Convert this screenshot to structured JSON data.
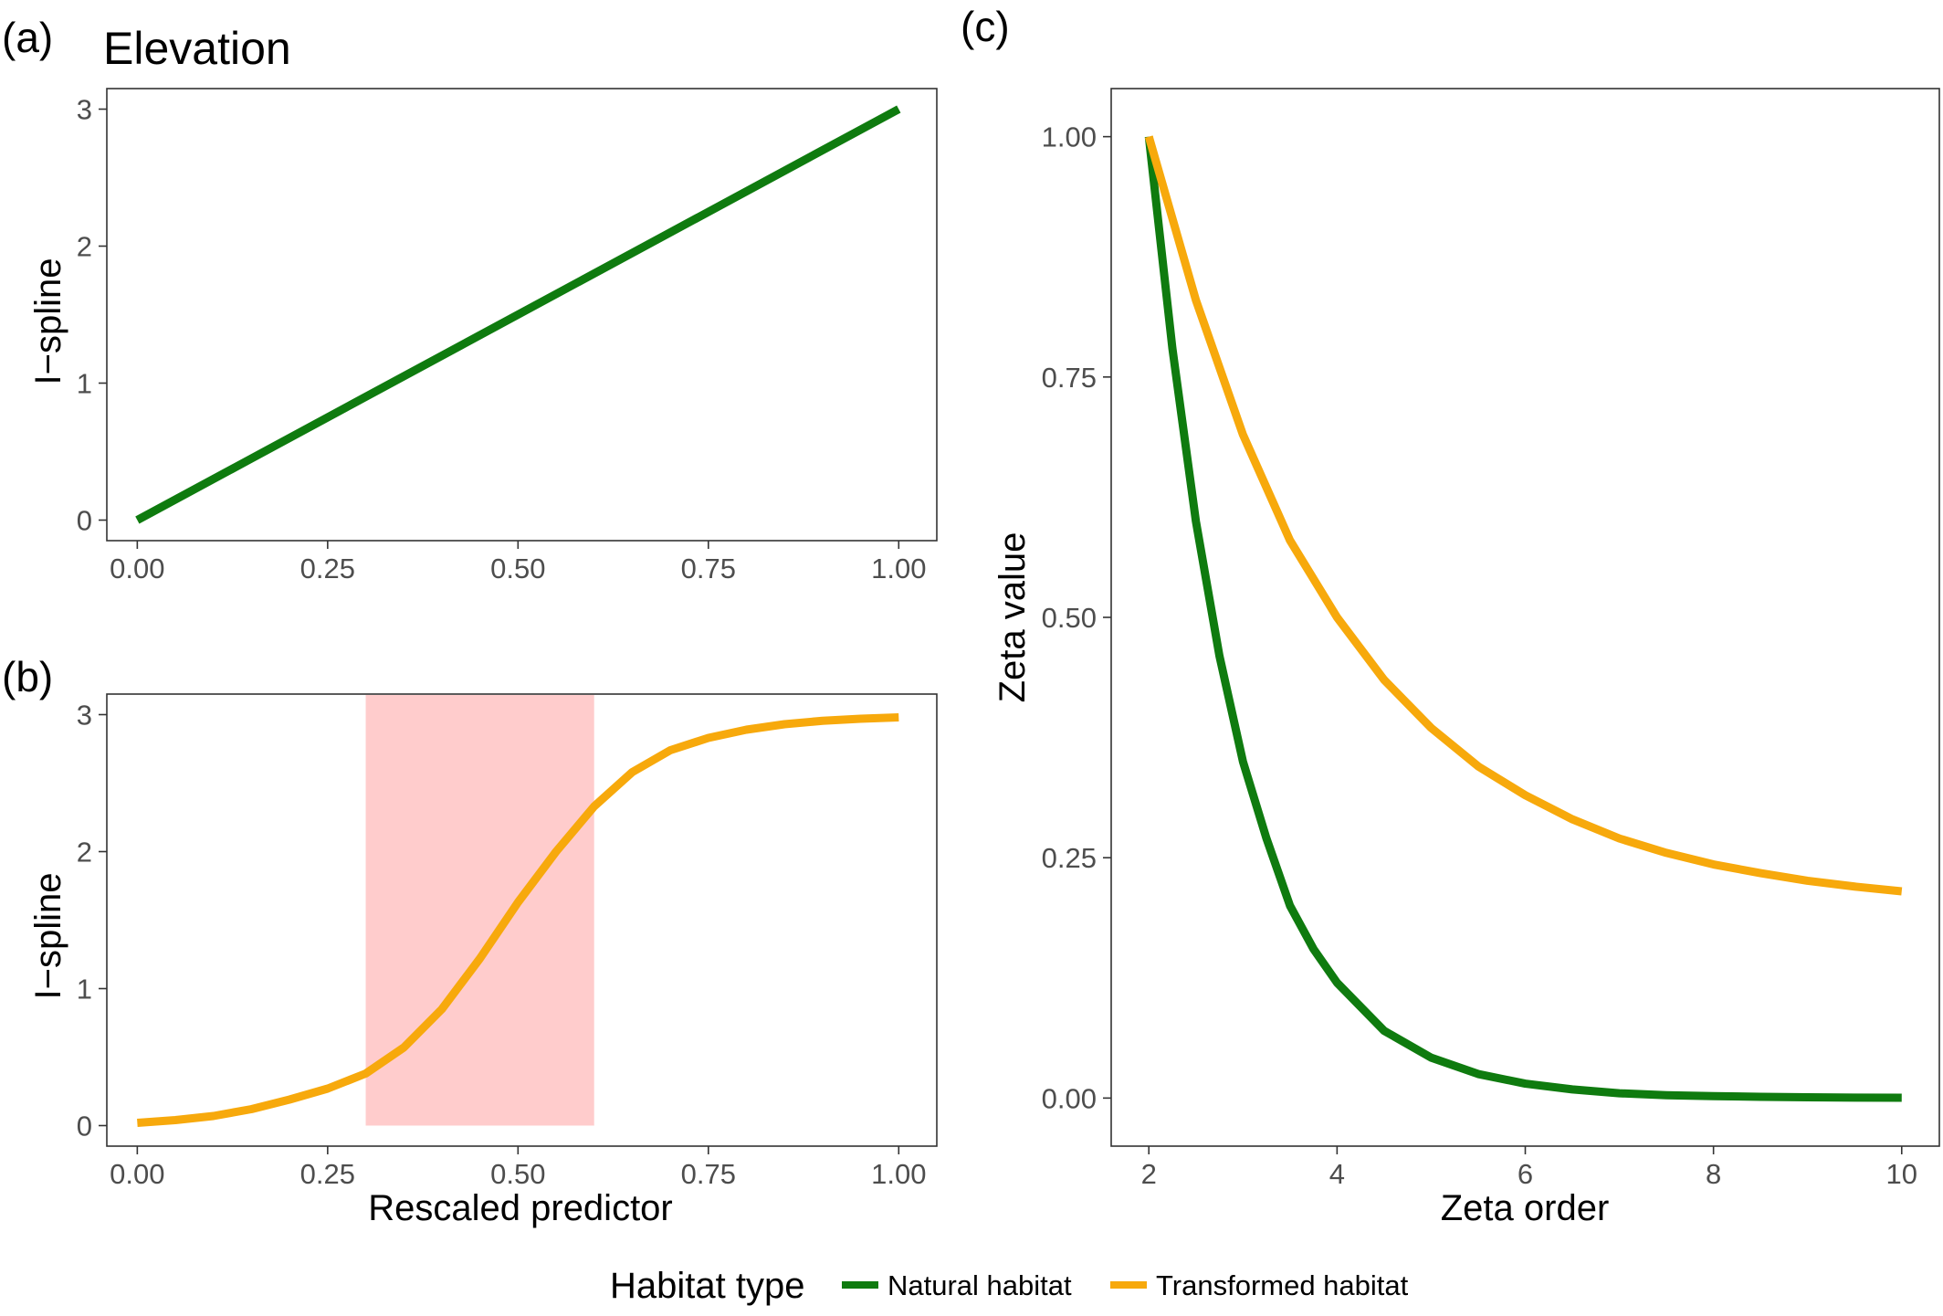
{
  "legend": {
    "title": "Habitat type",
    "items": [
      {
        "label": "Natural habitat",
        "color": "#0f7b0f"
      },
      {
        "label": "Transformed habitat",
        "color": "#f7a90c"
      }
    ]
  },
  "chart_data": [
    {
      "panel": "(a)",
      "type": "line",
      "title": "Elevation",
      "xlabel": "",
      "ylabel": "I−spline",
      "xlim": [
        -0.04,
        1.05
      ],
      "ylim": [
        -0.15,
        3.15
      ],
      "xticks": [
        0,
        0.25,
        0.5,
        0.75,
        1
      ],
      "xtick_labels": [
        "0.00",
        "0.25",
        "0.50",
        "0.75",
        "1.00"
      ],
      "yticks": [
        0,
        1,
        2,
        3
      ],
      "ytick_labels": [
        "0",
        "1",
        "2",
        "3"
      ],
      "grid": false,
      "series": [
        {
          "color": "#0f7b0f",
          "x": [
            0,
            1
          ],
          "y": [
            0,
            3
          ]
        }
      ]
    },
    {
      "panel": "(b)",
      "type": "line",
      "title": "",
      "xlabel": "Rescaled predictor",
      "ylabel": "I−spline",
      "xlim": [
        -0.04,
        1.05
      ],
      "ylim": [
        -0.15,
        3.15
      ],
      "xticks": [
        0,
        0.25,
        0.5,
        0.75,
        1
      ],
      "xtick_labels": [
        "0.00",
        "0.25",
        "0.50",
        "0.75",
        "1.00"
      ],
      "yticks": [
        0,
        1,
        2,
        3
      ],
      "ytick_labels": [
        "0",
        "1",
        "2",
        "3"
      ],
      "grid": false,
      "shaded_region": {
        "x": [
          0.3,
          0.6
        ],
        "y": [
          0,
          3.15
        ],
        "color": "#ffcccc"
      },
      "series": [
        {
          "color": "#f7a90c",
          "x": [
            0,
            0.05,
            0.1,
            0.15,
            0.2,
            0.25,
            0.3,
            0.35,
            0.4,
            0.45,
            0.5,
            0.55,
            0.6,
            0.65,
            0.7,
            0.75,
            0.8,
            0.85,
            0.9,
            0.95,
            1
          ],
          "y": [
            0.02,
            0.04,
            0.07,
            0.12,
            0.19,
            0.27,
            0.38,
            0.57,
            0.85,
            1.22,
            1.63,
            2.0,
            2.33,
            2.58,
            2.74,
            2.83,
            2.89,
            2.93,
            2.955,
            2.97,
            2.98
          ]
        }
      ]
    },
    {
      "panel": "(c)",
      "type": "line",
      "title": "",
      "xlabel": "Zeta order",
      "ylabel": "Zeta value",
      "xlim": [
        1.6,
        10.4
      ],
      "ylim": [
        -0.05,
        1.05
      ],
      "xticks": [
        2,
        4,
        6,
        8,
        10
      ],
      "xtick_labels": [
        "2",
        "4",
        "6",
        "8",
        "10"
      ],
      "yticks": [
        0,
        0.25,
        0.5,
        0.75,
        1
      ],
      "ytick_labels": [
        "0.00",
        "0.25",
        "0.50",
        "0.75",
        "1.00"
      ],
      "grid": false,
      "series": [
        {
          "color": "#0f7b0f",
          "x": [
            2,
            2.25,
            2.5,
            2.75,
            3,
            3.25,
            3.5,
            3.75,
            4,
            4.5,
            5,
            5.5,
            6,
            6.5,
            7,
            7.5,
            8,
            8.5,
            9,
            9.5,
            10
          ],
          "y": [
            1.0,
            0.78,
            0.6,
            0.46,
            0.35,
            0.27,
            0.2,
            0.155,
            0.12,
            0.07,
            0.042,
            0.025,
            0.015,
            0.009,
            0.005,
            0.003,
            0.002,
            0.0013,
            0.0008,
            0.0005,
            0.0003
          ]
        },
        {
          "color": "#f7a90c",
          "x": [
            2,
            2.5,
            3,
            3.5,
            4,
            4.5,
            5,
            5.5,
            6,
            6.5,
            7,
            7.5,
            8,
            8.5,
            9,
            9.5,
            10
          ],
          "y": [
            1.0,
            0.83,
            0.69,
            0.58,
            0.5,
            0.435,
            0.385,
            0.345,
            0.315,
            0.29,
            0.27,
            0.255,
            0.243,
            0.234,
            0.226,
            0.22,
            0.215
          ]
        }
      ]
    }
  ]
}
